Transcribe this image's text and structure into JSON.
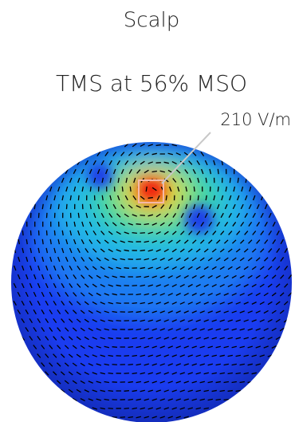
{
  "header": {
    "title": "Scalp",
    "subtitle": "TMS at 56% MSO"
  },
  "annotation": {
    "label": "210 V/m"
  }
}
